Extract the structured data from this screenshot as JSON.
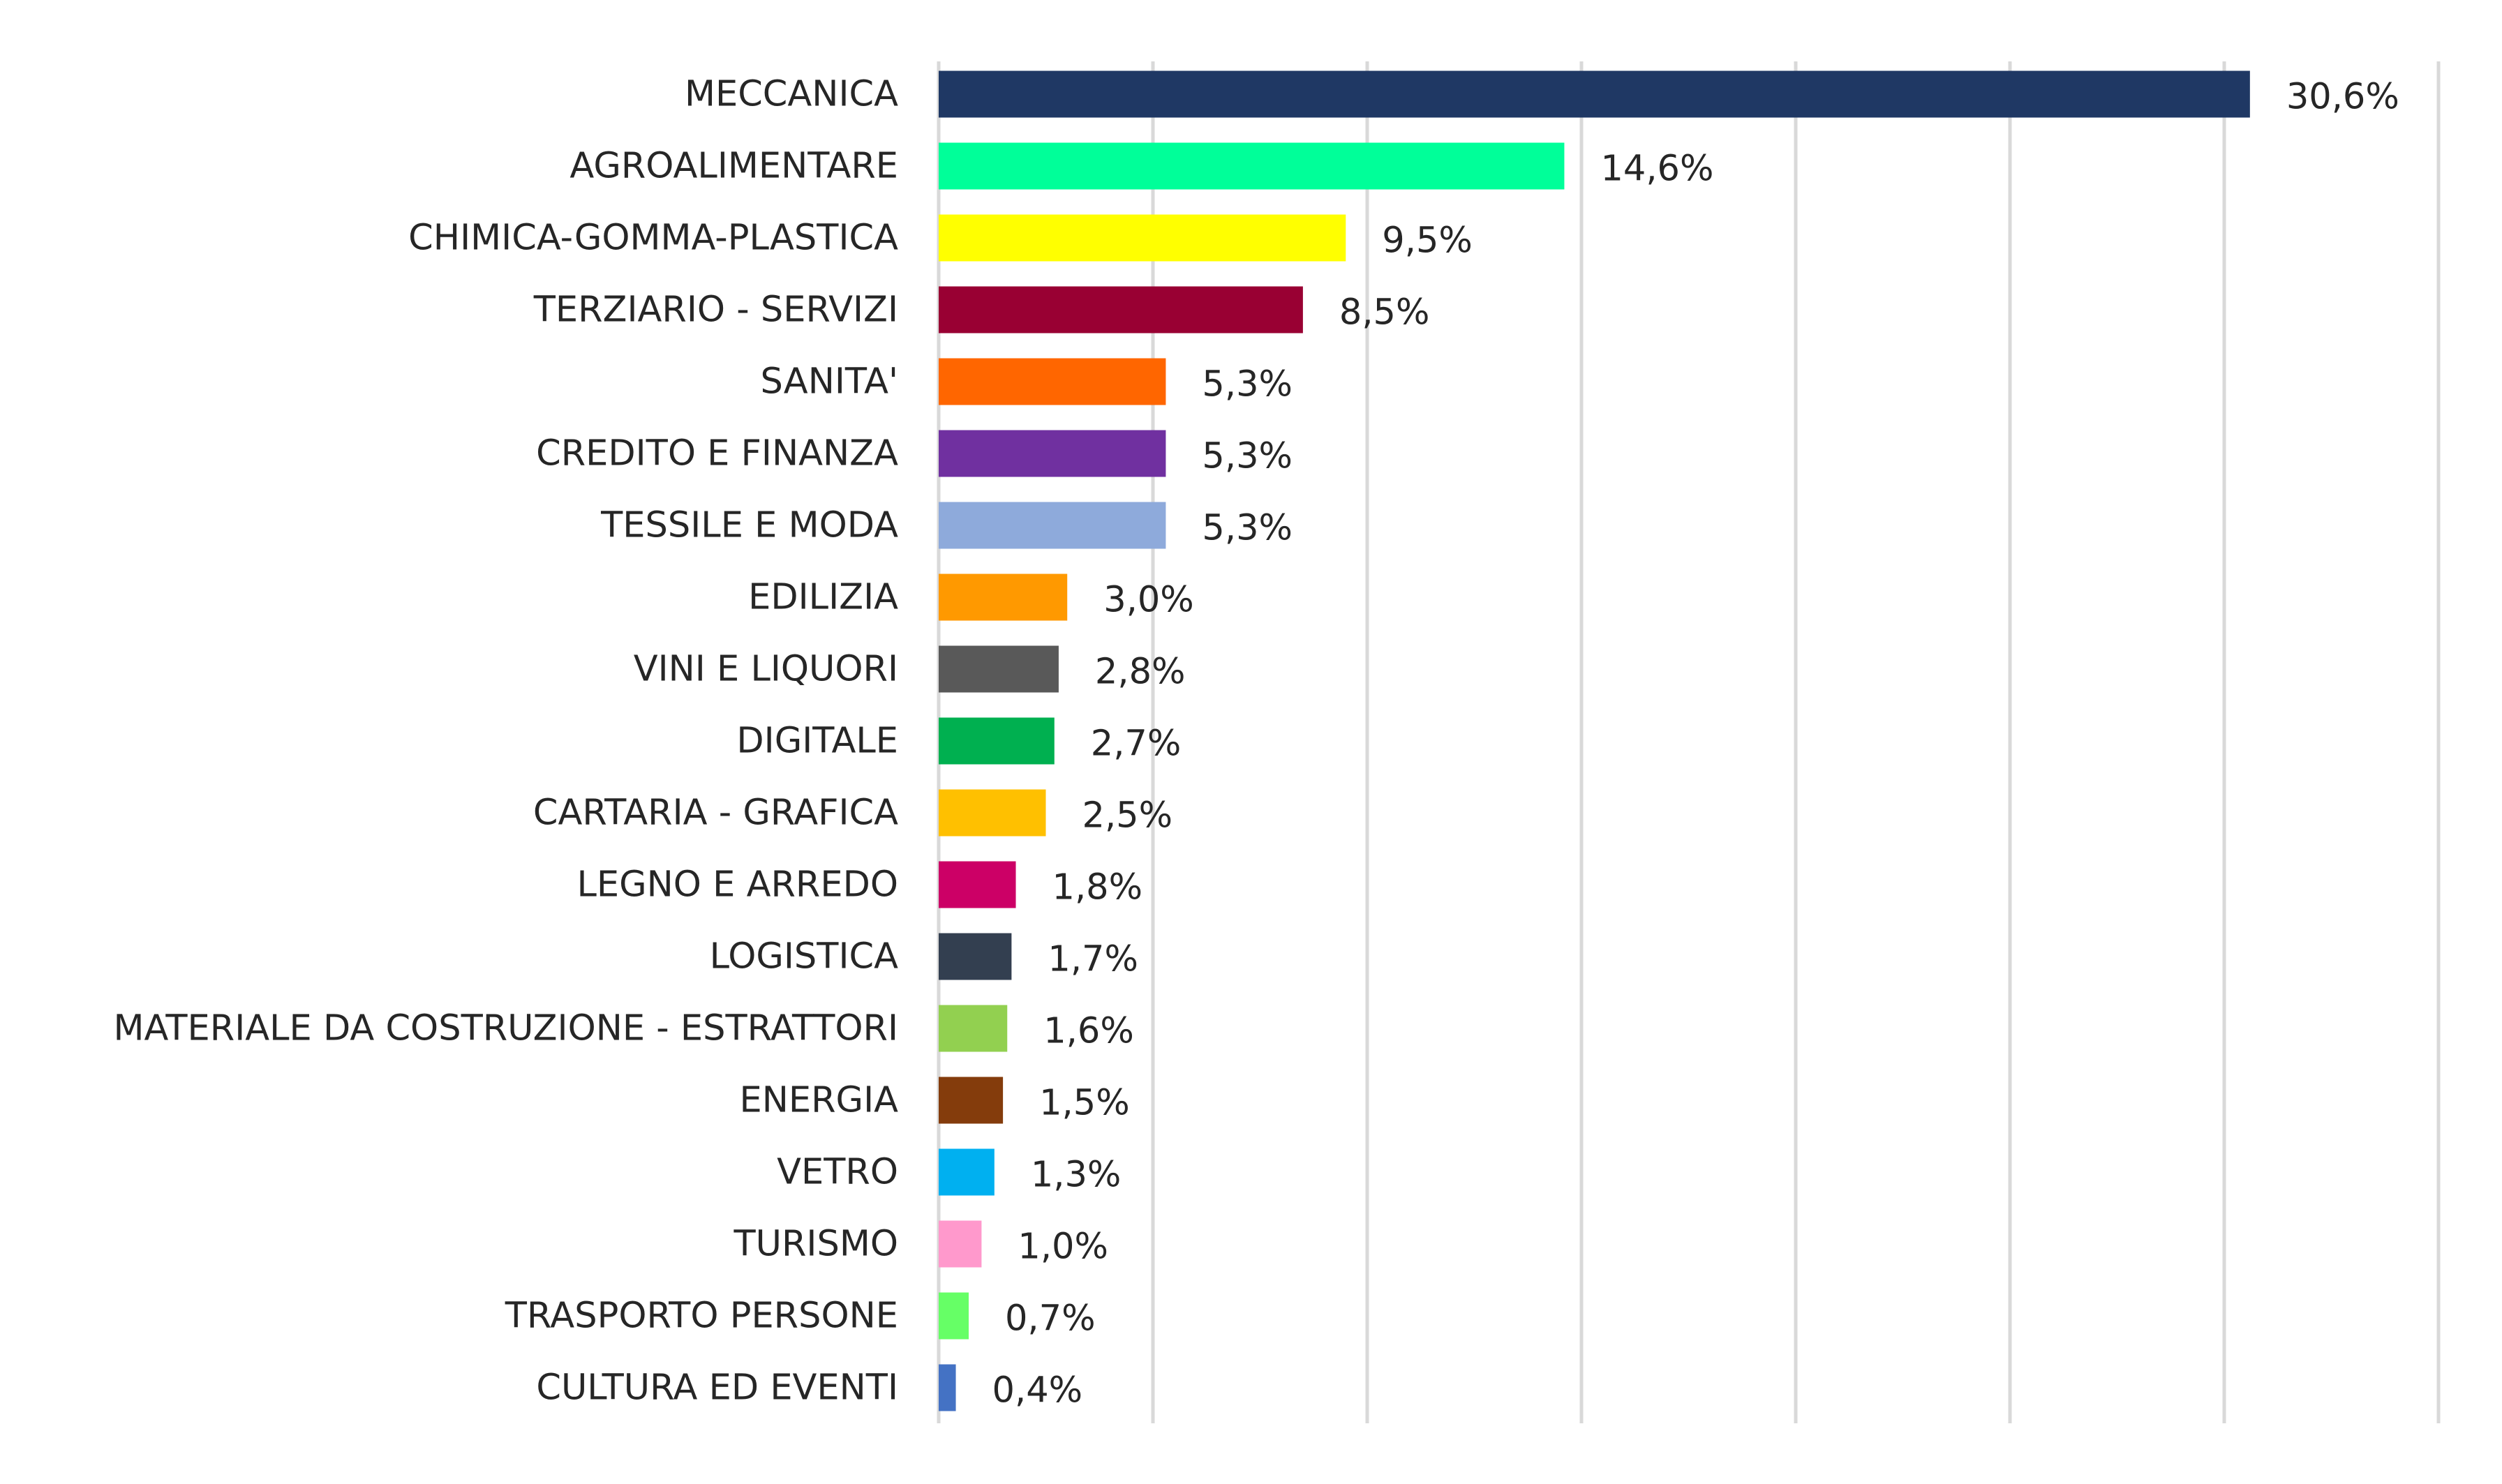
{
  "chart_data": {
    "type": "bar",
    "orientation": "horizontal",
    "title": "",
    "xlabel": "",
    "ylabel": "",
    "xlim": [
      0,
      35
    ],
    "grid": true,
    "legend": "none",
    "categories": [
      "MECCANICA",
      "AGROALIMENTARE",
      "CHIMICA-GOMMA-PLASTICA",
      "TERZIARIO - SERVIZI",
      "SANITA'",
      "CREDITO E FINANZA",
      "TESSILE E MODA",
      "EDILIZIA",
      "VINI E LIQUORI",
      "DIGITALE",
      "CARTARIA - GRAFICA",
      "LEGNO E ARREDO",
      "LOGISTICA",
      "MATERIALE DA COSTRUZIONE - ESTRATTORI",
      "ENERGIA",
      "VETRO",
      "TURISMO",
      "TRASPORTO PERSONE",
      "CULTURA ED EVENTI"
    ],
    "values": [
      30.6,
      14.6,
      9.5,
      8.5,
      5.3,
      5.3,
      5.3,
      3.0,
      2.8,
      2.7,
      2.5,
      1.8,
      1.7,
      1.6,
      1.5,
      1.3,
      1.0,
      0.7,
      0.4
    ],
    "data_labels": [
      "30,6%",
      "14,6%",
      "9,5%",
      "8,5%",
      "5,3%",
      "5,3%",
      "5,3%",
      "3,0%",
      "2,8%",
      "2,7%",
      "2,5%",
      "1,8%",
      "1,7%",
      "1,6%",
      "1,5%",
      "1,3%",
      "1,0%",
      "0,7%",
      "0,4%"
    ],
    "colors": [
      "#1f3864",
      "#00ff99",
      "#ffff00",
      "#990033",
      "#ff6600",
      "#7030a0",
      "#8eaadb",
      "#ff9900",
      "#595959",
      "#00b050",
      "#ffc000",
      "#cc0066",
      "#333f50",
      "#92d050",
      "#843c0c",
      "#00b0f0",
      "#ff99cc",
      "#66ff66",
      "#4472c4"
    ],
    "gridline_color": "#d9d9d9"
  }
}
